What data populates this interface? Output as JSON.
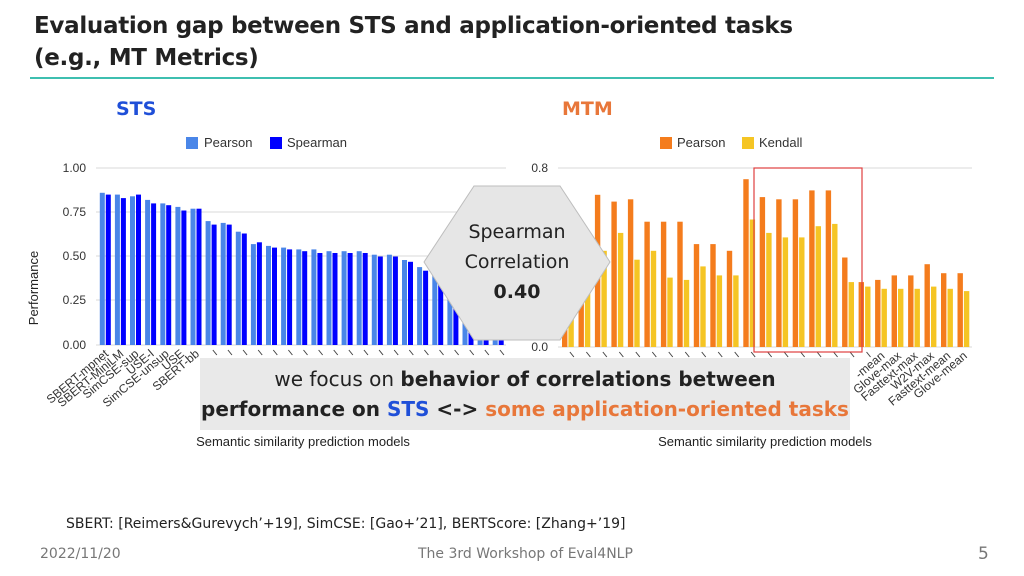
{
  "slide": {
    "title_line1": "Evaluation gap between STS and application-oriented tasks",
    "title_line2": "(e.g., MT Metrics)",
    "sts_label": "STS",
    "mtm_label": "MTM",
    "callout": {
      "line1": "Spearman",
      "line2": "Correlation",
      "value": "0.40"
    },
    "focus": {
      "p1": "we focus on ",
      "p2": "behavior of correlations between",
      "p3": "performance on ",
      "p4": "STS",
      "p5": " <-> ",
      "p6": "some application-oriented  tasks"
    },
    "refs": "SBERT: [Reimers&Gurevych’+19], SimCSE: [Gao+’21], BERTScore: [Zhang+’19]",
    "date": "2022/11/20",
    "venue": "The 3rd Workshop of Eval4NLP",
    "page": "5"
  },
  "colors": {
    "sts_label": "#1f4fd8",
    "mtm_label": "#e8773a",
    "accent_line": "#3dbfb0",
    "pearson_sts": "#4a86e8",
    "spearman_sts": "#0000ff",
    "pearson_mtm": "#f47c1d",
    "kendall_mtm": "#f5c524",
    "highlight_box": "#e04040",
    "focus_sts": "#1f4fd8",
    "focus_tasks": "#e8773a"
  },
  "chart_data": [
    {
      "type": "bar",
      "xlabel": "Semantic similarity prediction models",
      "ylabel": "Performance",
      "ylim": [
        0,
        1.0
      ],
      "yticks": [
        "0.00",
        "0.25",
        "0.50",
        "0.75",
        "1.00"
      ],
      "legend_position": "top",
      "categories": [
        "SBERT-mpnet",
        "SBERT-MiniLM",
        "SimCSE-sup",
        "USE-l",
        "SimCSE-unsup",
        "USE",
        "SBERT-bb",
        "",
        "",
        "",
        "",
        "",
        "",
        "",
        "",
        "",
        "",
        "",
        "",
        "",
        "",
        "",
        "",
        "",
        "",
        "",
        ""
      ],
      "series": [
        {
          "name": "Pearson",
          "values": [
            0.86,
            0.85,
            0.84,
            0.82,
            0.8,
            0.78,
            0.77,
            0.7,
            0.69,
            0.64,
            0.57,
            0.56,
            0.55,
            0.54,
            0.54,
            0.53,
            0.53,
            0.53,
            0.51,
            0.51,
            0.48,
            0.44,
            0.4,
            0.37,
            0.35,
            0.33,
            0.32
          ]
        },
        {
          "name": "Spearman",
          "values": [
            0.85,
            0.83,
            0.85,
            0.8,
            0.79,
            0.76,
            0.77,
            0.68,
            0.68,
            0.63,
            0.58,
            0.55,
            0.54,
            0.53,
            0.52,
            0.52,
            0.52,
            0.52,
            0.5,
            0.5,
            0.47,
            0.42,
            0.39,
            0.36,
            0.34,
            0.32,
            0.31
          ]
        }
      ]
    },
    {
      "type": "bar",
      "xlabel": "Semantic similarity prediction models",
      "ylim": [
        0,
        0.8
      ],
      "yticks": [
        "0.0",
        "0.8"
      ],
      "legend_position": "top",
      "categories": [
        "",
        "",
        "",
        "",
        "",
        "",
        "",
        "",
        "",
        "",
        "",
        "",
        "",
        "",
        "",
        "",
        "",
        "",
        "",
        "-mean",
        "Glove-max",
        "Fasttext-max",
        "W2V-max",
        "Fasttext-mean",
        "Glove-mean"
      ],
      "series": [
        {
          "name": "Pearson",
          "values": [
            0.2,
            0.45,
            0.68,
            0.65,
            0.66,
            0.56,
            0.56,
            0.56,
            0.46,
            0.46,
            0.43,
            0.75,
            0.67,
            0.66,
            0.66,
            0.7,
            0.7,
            0.4,
            0.29,
            0.3,
            0.32,
            0.32,
            0.37,
            0.33,
            0.33
          ]
        },
        {
          "name": "Kendall",
          "values": [
            0.15,
            0.48,
            0.43,
            0.51,
            0.39,
            0.43,
            0.31,
            0.3,
            0.36,
            0.32,
            0.32,
            0.57,
            0.51,
            0.49,
            0.49,
            0.54,
            0.55,
            0.29,
            0.27,
            0.26,
            0.26,
            0.26,
            0.27,
            0.26,
            0.25
          ]
        }
      ]
    }
  ]
}
